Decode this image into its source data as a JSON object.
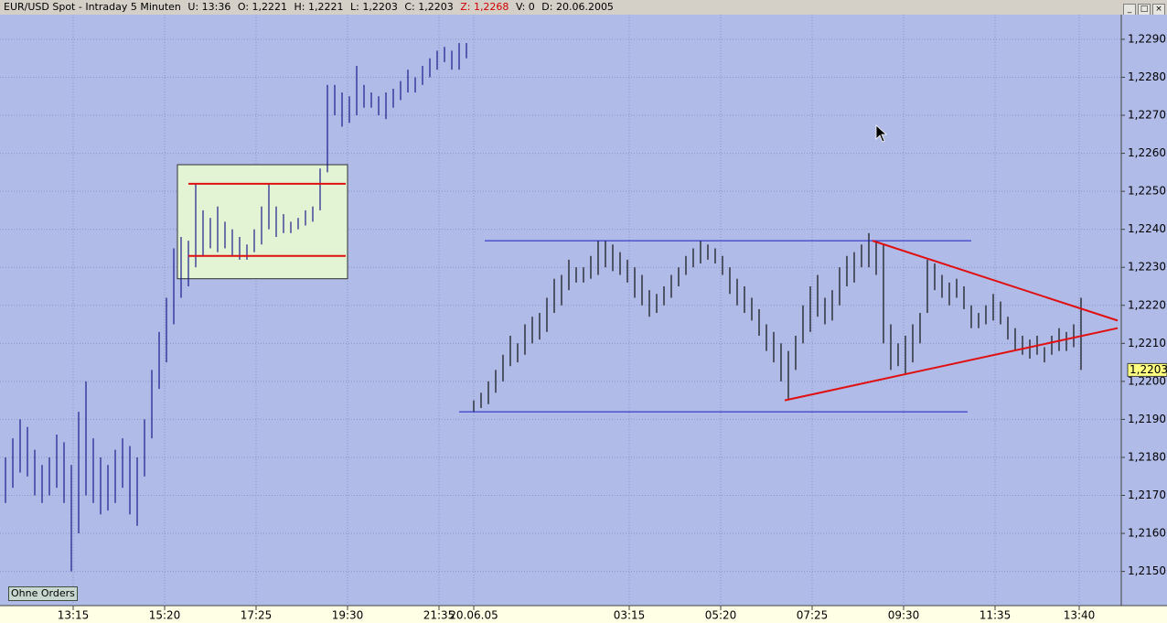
{
  "header": {
    "title": "EUR/USD Spot - Intraday 5 Minuten",
    "info": [
      "U: 13:36",
      "O: 1,2221",
      "H: 1,2221",
      "L: 1,2203",
      "C: 1,2203",
      "Z: 1,2268",
      "V: 0",
      "D: 20.06.2005"
    ]
  },
  "button": "Ohne Orders",
  "chart_data": {
    "type": "ohlc",
    "xlim": [
      0,
      305
    ],
    "ylim": [
      1.2141,
      1.2296
    ],
    "grid": true,
    "yticks": [
      {
        "value": 1.215,
        "label": "1,2150"
      },
      {
        "value": 1.216,
        "label": "1,2160"
      },
      {
        "value": 1.217,
        "label": "1,2170"
      },
      {
        "value": 1.218,
        "label": "1,2180"
      },
      {
        "value": 1.219,
        "label": "1,2190"
      },
      {
        "value": 1.22,
        "label": "1,2200"
      },
      {
        "value": 1.221,
        "label": "1,2210"
      },
      {
        "value": 1.222,
        "label": "1,2220"
      },
      {
        "value": 1.223,
        "label": "1,2230"
      },
      {
        "value": 1.224,
        "label": "1,2240"
      },
      {
        "value": 1.225,
        "label": "1,2250"
      },
      {
        "value": 1.226,
        "label": "1,2260"
      },
      {
        "value": 1.227,
        "label": "1,2270"
      },
      {
        "value": 1.228,
        "label": "1,2280"
      },
      {
        "value": 1.229,
        "label": "1,2290"
      }
    ],
    "xticks": [
      {
        "value": 18.5,
        "label": "13:15"
      },
      {
        "value": 43.5,
        "label": "15:20"
      },
      {
        "value": 68.5,
        "label": "17:25"
      },
      {
        "value": 93.5,
        "label": "19:30"
      },
      {
        "value": 118.5,
        "label": "21:35"
      },
      {
        "value": 128,
        "label": "20.06.05"
      },
      {
        "value": 170.5,
        "label": "03:15"
      },
      {
        "value": 195.5,
        "label": "05:20"
      },
      {
        "value": 220.5,
        "label": "07:25"
      },
      {
        "value": 245.5,
        "label": "09:30"
      },
      {
        "value": 270.5,
        "label": "11:35"
      },
      {
        "value": 293.5,
        "label": "13:40"
      }
    ],
    "last": {
      "value": 1.2203,
      "label": "1,2203"
    },
    "bars": [
      {
        "color": "#1c1c8c",
        "x": [
          0,
          2,
          4,
          6,
          8,
          10,
          12,
          14,
          16,
          18,
          20,
          22,
          24,
          26,
          28,
          30,
          32,
          34,
          36,
          38,
          40,
          42,
          44,
          46,
          48,
          50,
          52,
          54,
          56,
          58,
          60,
          62,
          64,
          66,
          68,
          70,
          72,
          74,
          76,
          78,
          80,
          82,
          84,
          86,
          88,
          90,
          92,
          94,
          96,
          98,
          100,
          102,
          104,
          106,
          108,
          110,
          112,
          114,
          116,
          118,
          120,
          122,
          124,
          126
        ],
        "high": [
          1.218,
          1.2185,
          1.219,
          1.2188,
          1.2182,
          1.2178,
          1.218,
          1.2186,
          1.2184,
          1.2178,
          1.2192,
          1.22,
          1.2185,
          1.218,
          1.2178,
          1.2182,
          1.2185,
          1.2183,
          1.218,
          1.219,
          1.2203,
          1.2213,
          1.2222,
          1.2235,
          1.2238,
          1.2237,
          1.2252,
          1.2245,
          1.2243,
          1.2246,
          1.2242,
          1.224,
          1.2238,
          1.2236,
          1.224,
          1.2246,
          1.2252,
          1.2246,
          1.2244,
          1.2242,
          1.2243,
          1.2245,
          1.2246,
          1.2256,
          1.2278,
          1.2278,
          1.2276,
          1.2275,
          1.2283,
          1.2278,
          1.2276,
          1.2275,
          1.2276,
          1.2277,
          1.2279,
          1.2282,
          1.228,
          1.2283,
          1.2285,
          1.2287,
          1.2288,
          1.2287,
          1.2289,
          1.2289
        ],
        "low": [
          1.2168,
          1.2172,
          1.2176,
          1.2175,
          1.217,
          1.2168,
          1.217,
          1.2172,
          1.2168,
          1.215,
          1.216,
          1.217,
          1.2168,
          1.2165,
          1.2166,
          1.2168,
          1.2172,
          1.2165,
          1.2162,
          1.2175,
          1.2185,
          1.2198,
          1.2205,
          1.2215,
          1.2222,
          1.2225,
          1.223,
          1.2233,
          1.2235,
          1.2234,
          1.2235,
          1.2233,
          1.2232,
          1.2232,
          1.2234,
          1.2236,
          1.224,
          1.2238,
          1.2239,
          1.2239,
          1.224,
          1.2241,
          1.2242,
          1.2245,
          1.2255,
          1.227,
          1.2267,
          1.2268,
          1.227,
          1.2272,
          1.2272,
          1.227,
          1.2269,
          1.2272,
          1.2274,
          1.2276,
          1.2276,
          1.2278,
          1.228,
          1.2282,
          1.2284,
          1.2282,
          1.2282,
          1.2285
        ]
      },
      {
        "color": "#101010",
        "x": [
          128,
          130,
          132,
          134,
          136,
          138,
          140,
          142,
          144,
          146,
          148,
          150,
          152,
          154,
          156,
          158,
          160,
          162,
          164,
          166,
          168,
          170,
          172,
          174,
          176,
          178,
          180,
          182,
          184,
          186,
          188,
          190,
          192,
          194,
          196,
          198,
          200,
          202,
          204,
          206,
          208,
          210,
          212,
          214,
          216,
          218,
          220,
          222,
          224,
          226,
          228,
          230,
          232,
          234,
          236,
          238,
          240,
          242,
          244,
          246,
          248,
          250,
          252,
          254,
          256,
          258,
          260,
          262,
          264,
          266,
          268,
          270,
          272,
          274,
          276,
          278,
          280,
          282,
          284,
          286,
          288,
          290,
          292,
          294
        ],
        "high": [
          1.2195,
          1.2197,
          1.22,
          1.2203,
          1.2207,
          1.2212,
          1.221,
          1.2215,
          1.2217,
          1.2218,
          1.2222,
          1.2227,
          1.2228,
          1.2232,
          1.223,
          1.223,
          1.2233,
          1.2237,
          1.2237,
          1.2236,
          1.2234,
          1.2232,
          1.223,
          1.2228,
          1.2224,
          1.2223,
          1.2225,
          1.2228,
          1.223,
          1.2233,
          1.2235,
          1.2237,
          1.2236,
          1.2235,
          1.2233,
          1.223,
          1.2227,
          1.2225,
          1.2222,
          1.2219,
          1.2215,
          1.2213,
          1.221,
          1.2208,
          1.2212,
          1.222,
          1.2225,
          1.2228,
          1.2222,
          1.2224,
          1.223,
          1.2233,
          1.2234,
          1.2236,
          1.2239,
          1.2237,
          1.2236,
          1.2215,
          1.221,
          1.2212,
          1.2215,
          1.2218,
          1.2232,
          1.2231,
          1.2228,
          1.2226,
          1.2227,
          1.2225,
          1.222,
          1.2218,
          1.222,
          1.2223,
          1.2221,
          1.2217,
          1.2214,
          1.2212,
          1.2211,
          1.2212,
          1.2209,
          1.2212,
          1.2214,
          1.2213,
          1.2215,
          1.2222
        ],
        "low": [
          1.2192,
          1.2193,
          1.2194,
          1.2197,
          1.22,
          1.2204,
          1.2205,
          1.2207,
          1.221,
          1.2211,
          1.2213,
          1.2218,
          1.222,
          1.2224,
          1.2226,
          1.2226,
          1.2227,
          1.2228,
          1.223,
          1.2229,
          1.2228,
          1.2226,
          1.2222,
          1.222,
          1.2217,
          1.2218,
          1.222,
          1.2222,
          1.2225,
          1.2228,
          1.223,
          1.2231,
          1.2232,
          1.2231,
          1.2228,
          1.2223,
          1.222,
          1.2218,
          1.2216,
          1.2212,
          1.2208,
          1.2205,
          1.22,
          1.2195,
          1.2203,
          1.221,
          1.2213,
          1.2217,
          1.2215,
          1.2216,
          1.222,
          1.2225,
          1.2226,
          1.223,
          1.223,
          1.2228,
          1.221,
          1.2203,
          1.2204,
          1.2202,
          1.2205,
          1.221,
          1.2218,
          1.2224,
          1.2222,
          1.222,
          1.2222,
          1.2219,
          1.2214,
          1.2214,
          1.2215,
          1.2216,
          1.2215,
          1.2211,
          1.2208,
          1.2207,
          1.2206,
          1.2207,
          1.2205,
          1.2207,
          1.2208,
          1.2208,
          1.2209,
          1.2203
        ]
      }
    ],
    "box": {
      "color": "#e2f4d4",
      "x": [
        47,
        93.5
      ],
      "y": [
        1.2227,
        1.2257
      ]
    },
    "lines": [
      {
        "color": "#1c1cc0",
        "x": [
          131,
          264
        ],
        "y": [
          1.2237,
          1.2237
        ]
      },
      {
        "color": "#1c1cc0",
        "x": [
          124,
          263
        ],
        "y": [
          1.2192,
          1.2192
        ]
      },
      {
        "color": "#e01010",
        "x": [
          50,
          93
        ],
        "y": [
          1.2252,
          1.2252
        ]
      },
      {
        "color": "#e01010",
        "x": [
          50,
          93
        ],
        "y": [
          1.2233,
          1.2233
        ]
      },
      {
        "color": "#e01010",
        "x": [
          213,
          304
        ],
        "y": [
          1.2195,
          1.2214
        ]
      },
      {
        "color": "#e01010",
        "x": [
          237,
          304
        ],
        "y": [
          1.2237,
          1.2216
        ]
      }
    ]
  }
}
